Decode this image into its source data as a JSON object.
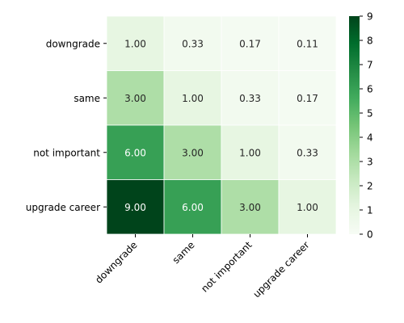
{
  "chart_data": {
    "type": "heatmap",
    "title": "",
    "xlabel": "",
    "ylabel": "",
    "x_categories": [
      "downgrade",
      "same",
      "not important",
      "upgrade career"
    ],
    "y_categories": [
      "downgrade",
      "same",
      "not important",
      "upgrade career"
    ],
    "values": [
      [
        1.0,
        0.33,
        0.17,
        0.11
      ],
      [
        3.0,
        1.0,
        0.33,
        0.17
      ],
      [
        6.0,
        3.0,
        1.0,
        0.33
      ],
      [
        9.0,
        6.0,
        3.0,
        1.0
      ]
    ],
    "cell_labels": [
      [
        "1.00",
        "0.33",
        "0.17",
        "0.11"
      ],
      [
        "3.00",
        "1.00",
        "0.33",
        "0.17"
      ],
      [
        "6.00",
        "3.00",
        "1.00",
        "0.33"
      ],
      [
        "9.00",
        "6.00",
        "3.00",
        "1.00"
      ]
    ],
    "colorbar": {
      "min": 0,
      "max": 9,
      "ticks": [
        "0",
        "1",
        "2",
        "3",
        "4",
        "5",
        "6",
        "7",
        "8",
        "9"
      ]
    },
    "colormap": "Greens",
    "colors": [
      "#f7fcf5",
      "#e5f5e0",
      "#c7e9c0",
      "#a1d99b",
      "#74c476",
      "#41ab5d",
      "#238b45",
      "#006d2c",
      "#00441b"
    ]
  }
}
